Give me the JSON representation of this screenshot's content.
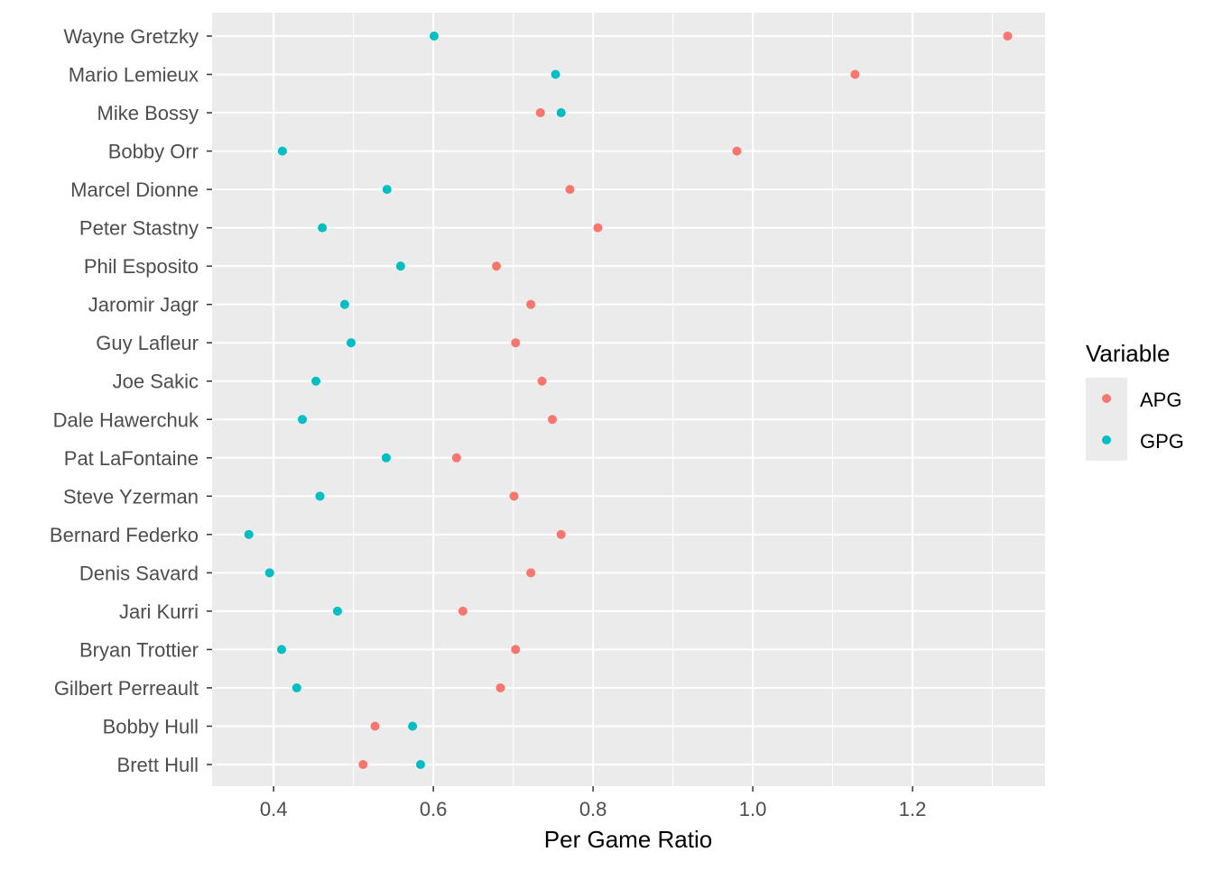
{
  "chart_data": {
    "type": "scatter",
    "title": "",
    "xlabel": "Per Game Ratio",
    "ylabel": "",
    "xlim": [
      0.323,
      1.366
    ],
    "x_ticks": [
      0.4,
      0.6,
      0.8,
      1.0,
      1.2
    ],
    "x_tick_labels": [
      "0.4",
      "0.6",
      "0.8",
      "1.0",
      "1.2"
    ],
    "x_minor_ticks": [
      0.5,
      0.7,
      0.9,
      1.1,
      1.3
    ],
    "grid": true,
    "legend": {
      "title": "Variable",
      "placement": "right"
    },
    "categories": [
      "Wayne Gretzky",
      "Mario Lemieux",
      "Mike Bossy",
      "Bobby Orr",
      "Marcel Dionne",
      "Peter Stastny",
      "Phil Esposito",
      "Jaromir Jagr",
      "Guy Lafleur",
      "Joe Sakic",
      "Dale Hawerchuk",
      "Pat LaFontaine",
      "Steve Yzerman",
      "Bernard Federko",
      "Denis Savard",
      "Jari Kurri",
      "Bryan Trottier",
      "Gilbert Perreault",
      "Bobby Hull",
      "Brett Hull"
    ],
    "series": [
      {
        "name": "APG",
        "color": "#F8766D",
        "values": [
          1.319,
          1.128,
          0.734,
          0.98,
          0.771,
          0.806,
          0.679,
          0.722,
          0.703,
          0.736,
          0.749,
          0.629,
          0.701,
          0.76,
          0.722,
          0.637,
          0.703,
          0.684,
          0.527,
          0.512
        ]
      },
      {
        "name": "GPG",
        "color": "#00BFC4",
        "values": [
          0.601,
          0.753,
          0.76,
          0.411,
          0.542,
          0.461,
          0.559,
          0.489,
          0.497,
          0.453,
          0.436,
          0.541,
          0.458,
          0.369,
          0.395,
          0.48,
          0.41,
          0.429,
          0.574,
          0.584
        ]
      }
    ]
  }
}
